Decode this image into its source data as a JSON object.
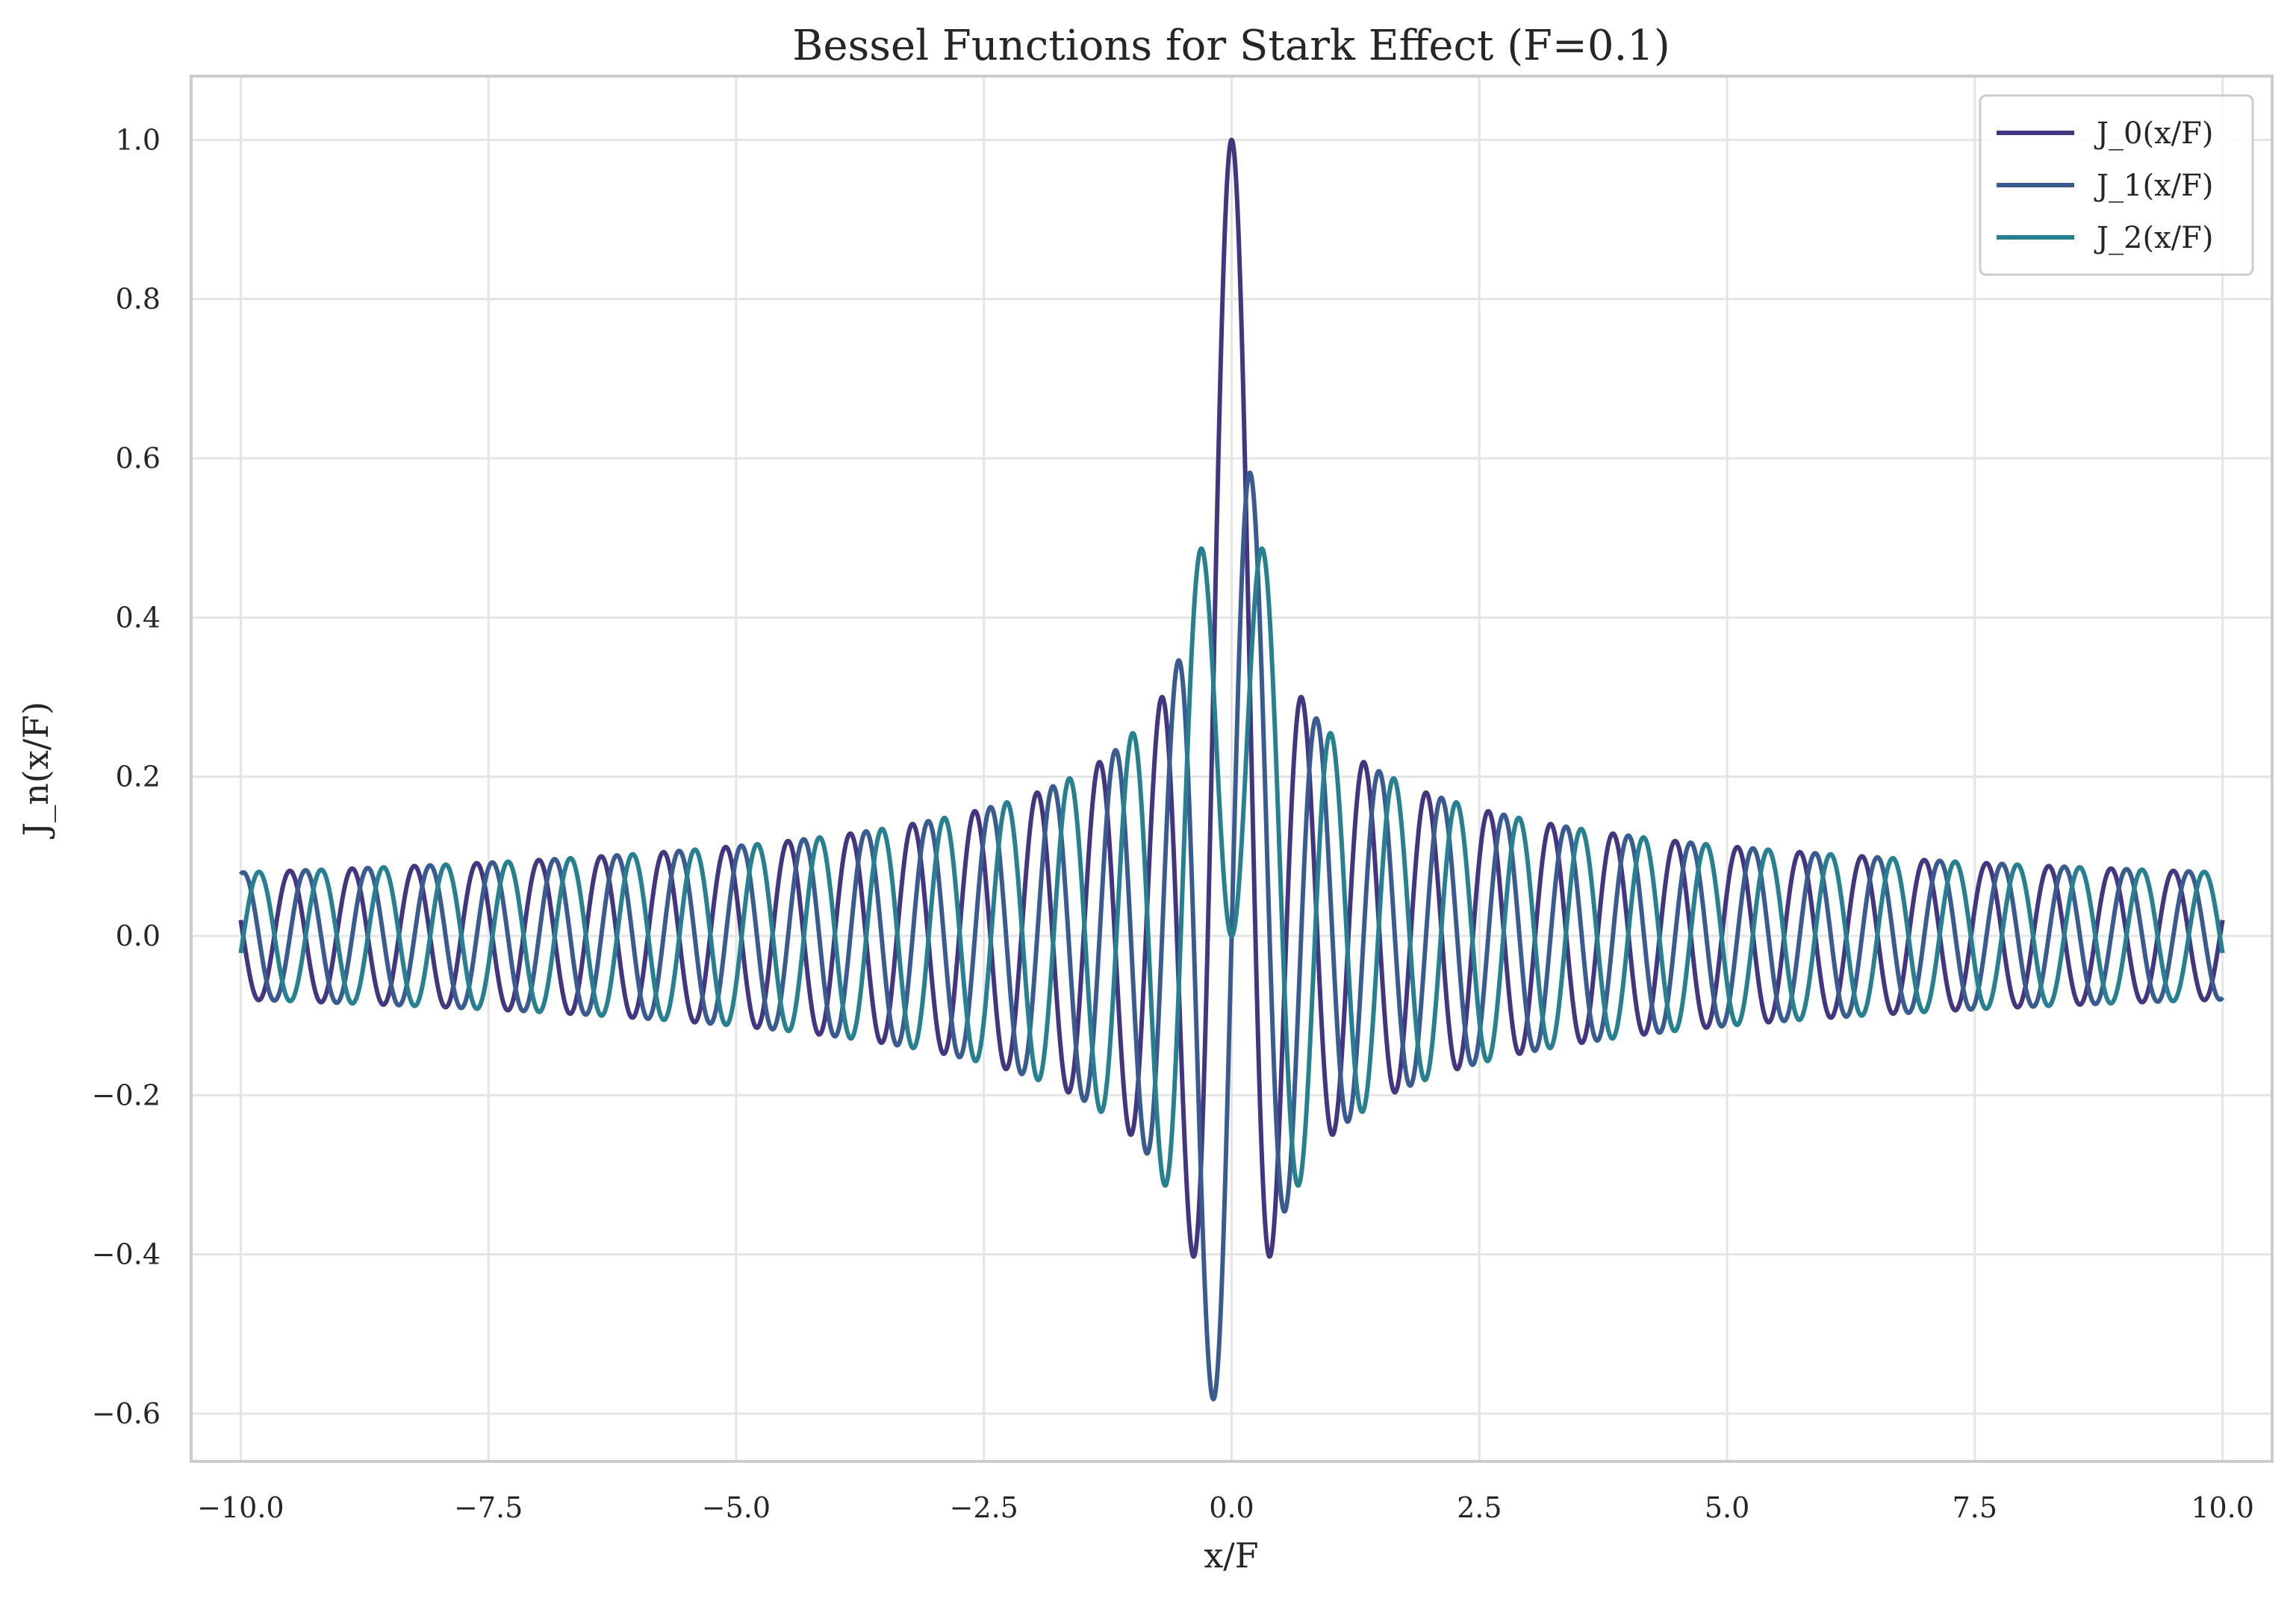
{
  "chart_data": {
    "type": "line",
    "title": "Bessel Functions for Stark Effect (F=0.1)",
    "xlabel": "x/F",
    "ylabel": "J_n(x/F)",
    "xlim": [
      -10.5,
      10.5
    ],
    "ylim": [
      -0.66,
      1.08
    ],
    "x_domain": [
      -10,
      10
    ],
    "x_ticks": [
      -10,
      -7.5,
      -5,
      -2.5,
      0,
      2.5,
      5,
      7.5,
      10
    ],
    "x_tick_labels": [
      "−10.0",
      "−7.5",
      "−5.0",
      "−2.5",
      "0.0",
      "2.5",
      "5.0",
      "7.5",
      "10.0"
    ],
    "y_ticks": [
      -0.6,
      -0.4,
      -0.2,
      0,
      0.2,
      0.4,
      0.6,
      0.8,
      1.0
    ],
    "y_tick_labels": [
      "−0.6",
      "−0.4",
      "−0.2",
      "0.0",
      "0.2",
      "0.4",
      "0.6",
      "0.8",
      "1.0"
    ],
    "grid": true,
    "legend_position": "top-right",
    "series": [
      {
        "name": "J_0(x/F)",
        "order": 0,
        "color": "#433580"
      },
      {
        "name": "J_1(x/F)",
        "order": 1,
        "color": "#3a5b8f"
      },
      {
        "name": "J_2(x/F)",
        "order": 2,
        "color": "#27808f"
      }
    ]
  }
}
